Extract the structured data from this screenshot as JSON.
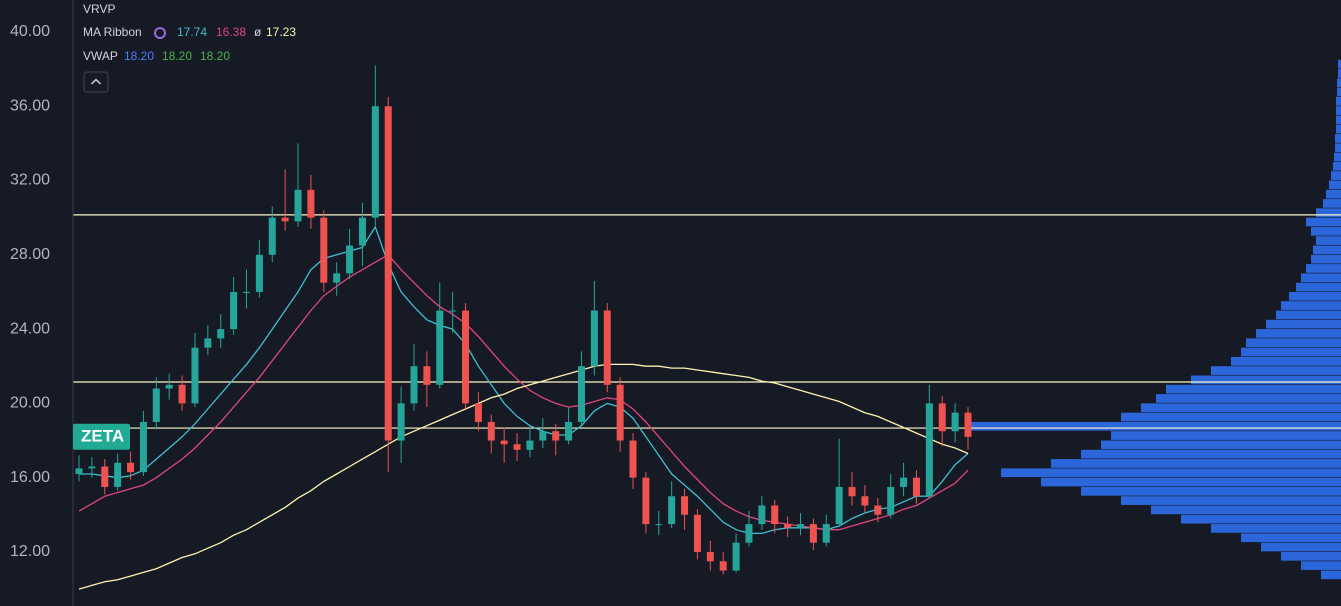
{
  "chart_data": {
    "type": "candlestick",
    "symbol": "ZETA",
    "legend": {
      "vrvp": "VRVP",
      "ma_ribbon": {
        "name": "MA Ribbon",
        "readouts": [
          17.74,
          16.38
        ],
        "separator": "ø",
        "last": 17.23
      },
      "vwap": {
        "name": "VWAP",
        "readouts": [
          {
            "value": 18.2,
            "label": "18.20"
          },
          {
            "value": 18.2,
            "label": "18.20"
          },
          {
            "value": 18.2,
            "label": "18.20"
          }
        ]
      }
    },
    "open": [
      16.2,
      16.5,
      16.6,
      15.5,
      16.8,
      16.3,
      19,
      20.8,
      21,
      20,
      23,
      23.5,
      24,
      26,
      26,
      28,
      30,
      29.8,
      31.5,
      30,
      26.5,
      27,
      28.5,
      30,
      36,
      18,
      20,
      22,
      21,
      25,
      25,
      20,
      19,
      18,
      17.8,
      17.5,
      18,
      18.5,
      18,
      19,
      22,
      25,
      21,
      18,
      16,
      13.5,
      13.5,
      15,
      14,
      12,
      11.5,
      11,
      12.5,
      13.5,
      14.5,
      13.5,
      13.3,
      13.5,
      12.5,
      13.5,
      15.5,
      15,
      14.5,
      14,
      15.5,
      16,
      15,
      20,
      18.5,
      19.5
    ],
    "high": [
      17.2,
      17.1,
      17.0,
      17.3,
      17.4,
      19.6,
      21.4,
      21.6,
      21.5,
      23.8,
      24.2,
      24.8,
      26.8,
      27.2,
      28.8,
      30.6,
      32.6,
      34.0,
      32.3,
      30.4,
      27.6,
      29.4,
      30.8,
      38.2,
      36.5,
      20.9,
      23.2,
      22.8,
      26.5,
      26.0,
      25.4,
      20.6,
      19.4,
      18.7,
      18.4,
      18.8,
      19.2,
      18.9,
      19.8,
      22.8,
      26.6,
      25.4,
      21.4,
      18.4,
      16.3,
      14.2,
      15.8,
      15.4,
      14.3,
      12.6,
      12.0,
      13.0,
      14.2,
      15.0,
      14.8,
      13.9,
      14.1,
      13.8,
      14.0,
      18.1,
      16.3,
      15.6,
      14.9,
      16.2,
      16.8,
      16.4,
      21.0,
      20.4,
      20.0,
      19.8
    ],
    "low": [
      15.8,
      16.0,
      15.1,
      15.3,
      15.9,
      16.1,
      18.6,
      20.2,
      19.6,
      19.8,
      22.6,
      23.0,
      23.7,
      25.1,
      25.7,
      27.6,
      29.3,
      29.5,
      29.4,
      26.0,
      25.8,
      26.7,
      27.4,
      29.6,
      16.3,
      16.8,
      19.6,
      19.8,
      20.8,
      23.8,
      19.7,
      18.5,
      17.3,
      16.8,
      16.9,
      17.1,
      17.6,
      17.2,
      17.8,
      18.8,
      21.5,
      20.6,
      17.4,
      15.4,
      13.0,
      12.9,
      13.3,
      13.2,
      11.6,
      11.0,
      10.8,
      10.9,
      12.3,
      13.2,
      13.0,
      12.8,
      12.9,
      12.1,
      12.3,
      13.4,
      14.5,
      14.1,
      13.6,
      13.8,
      15.0,
      14.6,
      14.9,
      17.7,
      17.9,
      17.5
    ],
    "close": [
      16.5,
      16.6,
      15.5,
      16.8,
      16.3,
      19,
      20.8,
      21,
      20,
      23,
      23.5,
      24,
      26,
      26,
      28,
      30,
      29.8,
      31.5,
      30,
      26.5,
      27,
      28.5,
      30,
      36,
      18,
      20,
      22,
      21,
      25,
      25,
      20,
      19,
      18,
      17.8,
      17.5,
      18,
      18.5,
      18,
      19,
      22,
      25,
      21,
      18,
      16,
      13.5,
      13.5,
      15,
      14,
      12,
      11.5,
      11,
      12.5,
      13.5,
      14.5,
      13.5,
      13.3,
      13.5,
      12.5,
      13.5,
      15.5,
      15,
      14.5,
      14,
      15.5,
      16,
      15,
      20,
      18.5,
      19.5,
      18.2
    ],
    "up_color": "#26a69a",
    "down_color": "#ef5350",
    "moving_averages": [
      {
        "color": "#3fbfcf",
        "values": [
          16.2,
          16.2,
          16.1,
          16.0,
          16.1,
          16.4,
          17.0,
          17.6,
          18.2,
          18.9,
          19.7,
          20.5,
          21.3,
          22.1,
          23.0,
          24.0,
          25.0,
          26.0,
          27.2,
          27.8,
          28.0,
          28.2,
          28.4,
          29.5,
          27.5,
          26.0,
          25.2,
          24.5,
          24.2,
          24.0,
          23.2,
          22.0,
          21.0,
          20.0,
          19.3,
          18.8,
          18.5,
          18.3,
          18.3,
          18.8,
          19.6,
          20.0,
          19.8,
          19.2,
          18.2,
          17.2,
          16.2,
          15.6,
          15.0,
          14.3,
          13.6,
          13.2,
          13.0,
          13.0,
          13.2,
          13.3,
          13.3,
          13.3,
          13.2,
          13.4,
          13.8,
          14.1,
          14.3,
          14.4,
          14.7,
          15.0,
          15.0,
          15.8,
          16.7,
          17.3
        ]
      },
      {
        "color": "#e0457b",
        "values": [
          14.2,
          14.6,
          15.0,
          15.2,
          15.4,
          15.6,
          16.0,
          16.5,
          17.0,
          17.6,
          18.3,
          19.0,
          19.8,
          20.6,
          21.4,
          22.3,
          23.2,
          24.1,
          25.0,
          25.8,
          26.3,
          26.8,
          27.2,
          27.6,
          28.0,
          27.2,
          26.5,
          25.8,
          25.2,
          24.8,
          24.3,
          23.6,
          22.8,
          22.0,
          21.3,
          20.7,
          20.3,
          20.0,
          19.8,
          19.9,
          20.1,
          20.3,
          20.2,
          19.7,
          19.0,
          18.2,
          17.4,
          16.6,
          15.9,
          15.2,
          14.6,
          14.2,
          13.9,
          13.7,
          13.6,
          13.5,
          13.4,
          13.3,
          13.2,
          13.2,
          13.4,
          13.6,
          13.8,
          14.0,
          14.3,
          14.5,
          14.9,
          15.3,
          15.7,
          16.4
        ]
      },
      {
        "color": "#fff3b0",
        "values": [
          10.0,
          10.2,
          10.4,
          10.5,
          10.7,
          10.9,
          11.1,
          11.4,
          11.7,
          11.9,
          12.2,
          12.5,
          12.9,
          13.2,
          13.6,
          14.0,
          14.4,
          14.9,
          15.3,
          15.8,
          16.2,
          16.6,
          17.0,
          17.4,
          17.8,
          18.2,
          18.5,
          18.8,
          19.1,
          19.4,
          19.7,
          20.0,
          20.3,
          20.5,
          20.8,
          21.0,
          21.2,
          21.4,
          21.6,
          21.8,
          22.0,
          22.1,
          22.1,
          22.1,
          22.0,
          22.0,
          21.9,
          21.9,
          21.8,
          21.7,
          21.6,
          21.5,
          21.4,
          21.2,
          21.1,
          20.9,
          20.7,
          20.5,
          20.3,
          20.1,
          19.8,
          19.5,
          19.3,
          19.0,
          18.7,
          18.4,
          18.1,
          17.8,
          17.6,
          17.3
        ]
      }
    ],
    "levels": [
      30.15,
      21.15,
      18.67
    ],
    "level_color": "#fff6c8",
    "volume_profile": {
      "color": "#2f6fef",
      "xlim": [
        0,
        400
      ],
      "bins": [
        10.5,
        11,
        11.5,
        12,
        12.5,
        13,
        13.5,
        14,
        14.5,
        15,
        15.5,
        16,
        16.5,
        17,
        17.5,
        18,
        18.5,
        19,
        19.5,
        20,
        20.5,
        21,
        21.5,
        22,
        22.5,
        23,
        23.5,
        24,
        24.5,
        25,
        25.5,
        26,
        26.5,
        27,
        27.5,
        28,
        28.5,
        29,
        29.5,
        30,
        30.5,
        31,
        31.5,
        32,
        32.5,
        33,
        33.5,
        34,
        34.5,
        35,
        35.5,
        36,
        36.5,
        37,
        37.5,
        38,
        38.5
      ],
      "volumes": [
        20,
        40,
        60,
        80,
        100,
        130,
        160,
        190,
        220,
        260,
        300,
        340,
        290,
        260,
        240,
        230,
        370,
        220,
        200,
        185,
        175,
        150,
        130,
        110,
        100,
        95,
        85,
        75,
        65,
        60,
        52,
        45,
        40,
        35,
        30,
        28,
        25,
        30,
        35,
        25,
        18,
        15,
        12,
        10,
        8,
        7,
        6,
        6,
        5,
        5,
        5,
        5,
        4,
        4,
        3,
        3
      ]
    },
    "ylim": [
      9.09,
      41.72
    ],
    "yticks": [
      {
        "value": 12,
        "label": "12.00"
      },
      {
        "value": 16,
        "label": "16.00"
      },
      {
        "value": 20,
        "label": "20.00"
      },
      {
        "value": 24,
        "label": "24.00"
      },
      {
        "value": 28,
        "label": "28.00"
      },
      {
        "value": 32,
        "label": "32.00"
      },
      {
        "value": 36,
        "label": "36.00"
      },
      {
        "value": 40,
        "label": "40.00"
      }
    ]
  }
}
